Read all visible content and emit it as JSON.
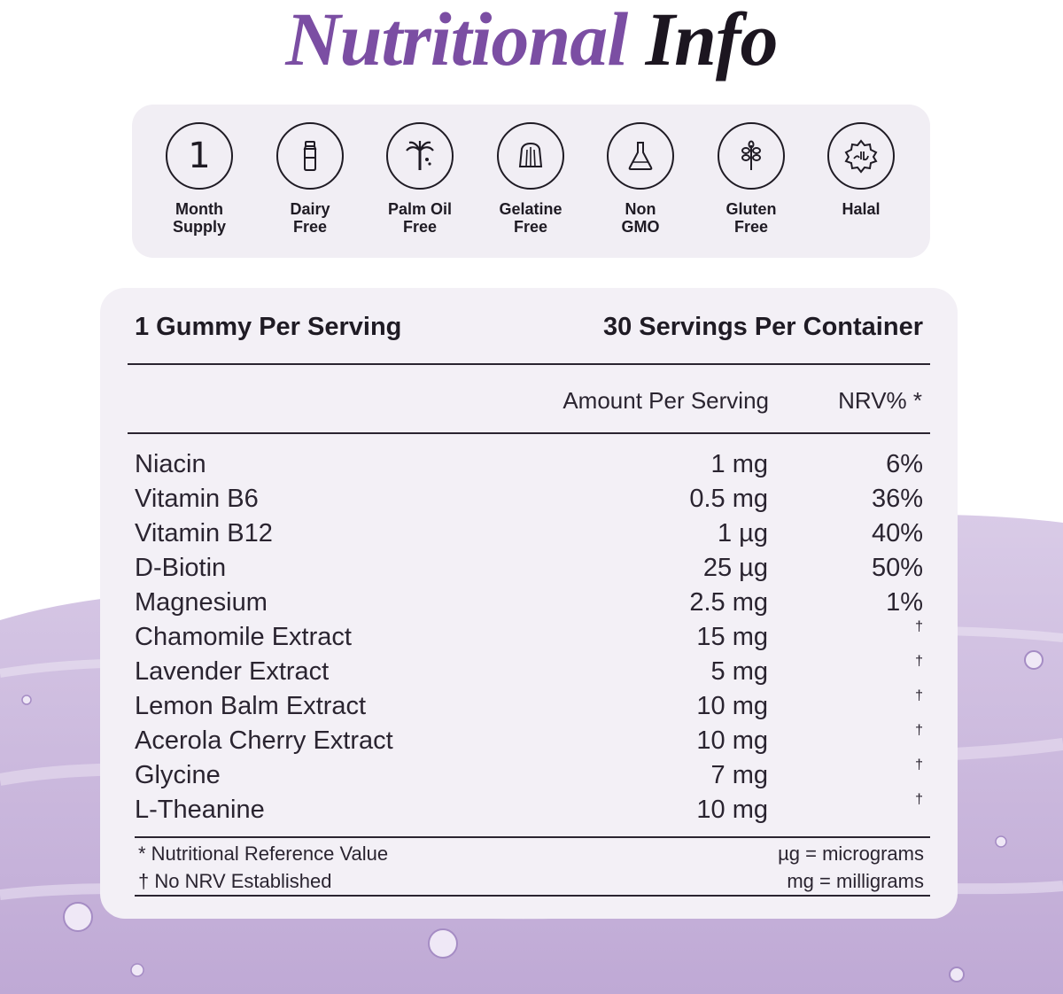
{
  "title": {
    "part1": "Nutritional",
    "part2": "Info"
  },
  "badges": [
    {
      "icon": "number-one-icon",
      "glyph": "1",
      "line1": "Month",
      "line2": "Supply"
    },
    {
      "icon": "milk-bottle-icon",
      "line1": "Dairy",
      "line2": "Free"
    },
    {
      "icon": "palm-tree-icon",
      "line1": "Palm Oil",
      "line2": "Free"
    },
    {
      "icon": "jelly-icon",
      "line1": "Gelatine",
      "line2": "Free"
    },
    {
      "icon": "flask-icon",
      "line1": "Non",
      "line2": "GMO"
    },
    {
      "icon": "wheat-icon",
      "line1": "Gluten",
      "line2": "Free"
    },
    {
      "icon": "halal-seal-icon",
      "line1": "Halal",
      "line2": ""
    }
  ],
  "facts": {
    "serving": "1 Gummy Per Serving",
    "servings_per_container": "30 Servings Per Container",
    "col_amount": "Amount Per Serving",
    "col_nrv": "NRV% *",
    "rows": [
      {
        "name": "Niacin",
        "amount": "1 mg",
        "nrv": "6%"
      },
      {
        "name": "Vitamin B6",
        "amount": "0.5 mg",
        "nrv": "36%"
      },
      {
        "name": "Vitamin B12",
        "amount": "1 µg",
        "nrv": "40%"
      },
      {
        "name": "D-Biotin",
        "amount": "25 µg",
        "nrv": "50%"
      },
      {
        "name": "Magnesium",
        "amount": "2.5 mg",
        "nrv": "1%"
      },
      {
        "name": "Chamomile Extract",
        "amount": "15 mg",
        "nrv": "†"
      },
      {
        "name": "Lavender Extract",
        "amount": "5 mg",
        "nrv": "†"
      },
      {
        "name": "Lemon Balm Extract",
        "amount": "10 mg",
        "nrv": "†"
      },
      {
        "name": "Acerola Cherry Extract",
        "amount": "10 mg",
        "nrv": "†"
      },
      {
        "name": "Glycine",
        "amount": "7 mg",
        "nrv": "†"
      },
      {
        "name": "L-Theanine",
        "amount": "10 mg",
        "nrv": "†"
      }
    ],
    "footnote_nrv": "* Nutritional Reference Value",
    "footnote_dagger": "† No NRV Established",
    "unit_ug": "µg = micrograms",
    "unit_mg": "mg = milligrams"
  },
  "colors": {
    "accent": "#7b4ea3",
    "panel": "#f3f0f6",
    "gel": "#c9b8dc"
  }
}
